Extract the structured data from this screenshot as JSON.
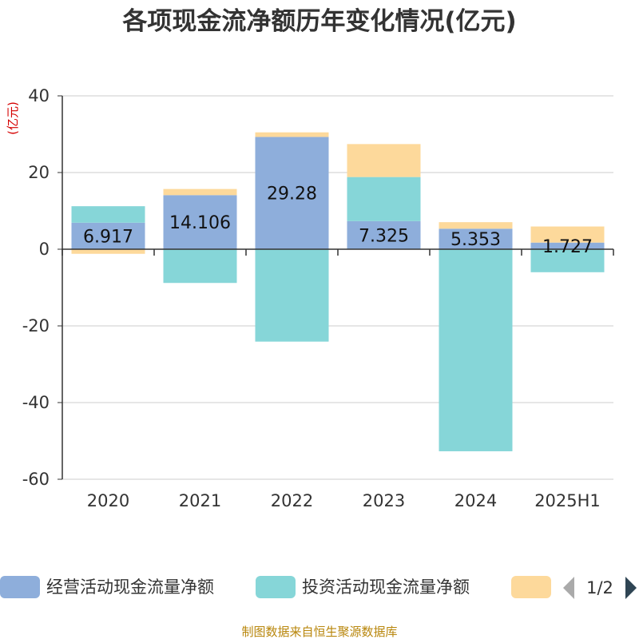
{
  "chart_data": {
    "type": "bar",
    "stacked": true,
    "title": "各项现金流净额历年变化情况(亿元)",
    "unit_label": "(亿元)",
    "categories": [
      "2020",
      "2021",
      "2022",
      "2023",
      "2024",
      "2025H1"
    ],
    "ylim": [
      -60,
      40
    ],
    "yticks": [
      40,
      20,
      0,
      -20,
      -40,
      -60
    ],
    "grid": true,
    "series": [
      {
        "name": "经营活动现金流量净额",
        "color": "#8eaedb",
        "values": [
          6.917,
          14.106,
          29.28,
          7.325,
          5.353,
          1.727
        ]
      },
      {
        "name": "投资活动现金流量净额",
        "color": "#86d6d8",
        "values": [
          4.3,
          -8.8,
          -24.1,
          11.5,
          -52.7,
          -6.0
        ]
      },
      {
        "color": "#fdd99b",
        "values": [
          -1.2,
          1.6,
          1.2,
          8.6,
          1.7,
          4.2
        ]
      }
    ],
    "data_labels": [
      "6.917",
      "14.106",
      "29.28",
      "7.325",
      "5.353",
      "1.727"
    ],
    "legend": {
      "placement": "bottom",
      "page": "1/2"
    }
  },
  "footer": "制图数据来自恒生聚源数据库"
}
